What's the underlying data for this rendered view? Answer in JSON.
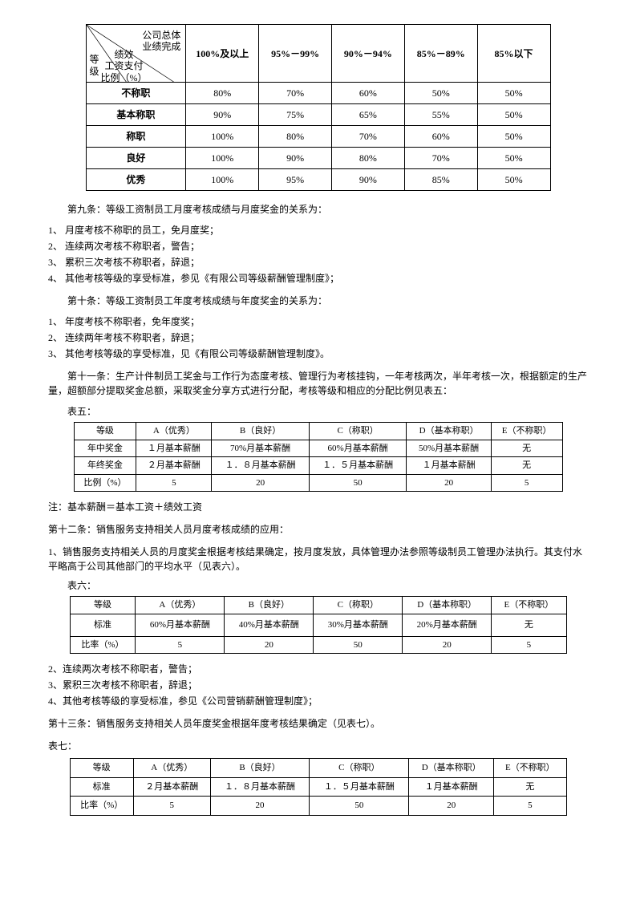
{
  "table1": {
    "diag_top": "公司总体\n业绩完成",
    "diag_mid": "绩效\n工资支付\n比例（%）",
    "diag_bot": "等\n级",
    "cols": [
      "100%及以上",
      "95%－99%",
      "90%－94%",
      "85%－89%",
      "85%以下"
    ],
    "rows": [
      {
        "label": "不称职",
        "vals": [
          "80%",
          "70%",
          "60%",
          "50%",
          "50%"
        ]
      },
      {
        "label": "基本称职",
        "vals": [
          "90%",
          "75%",
          "65%",
          "55%",
          "50%"
        ]
      },
      {
        "label": "称职",
        "vals": [
          "100%",
          "80%",
          "70%",
          "60%",
          "50%"
        ]
      },
      {
        "label": "良好",
        "vals": [
          "100%",
          "90%",
          "80%",
          "70%",
          "50%"
        ]
      },
      {
        "label": "优秀",
        "vals": [
          "100%",
          "95%",
          "90%",
          "85%",
          "50%"
        ]
      }
    ]
  },
  "art9_title": "第九条：等级工资制员工月度考核成绩与月度奖金的关系为：",
  "art9_list": [
    "1、 月度考核不称职的员工，免月度奖；",
    "2、 连续两次考核不称职者，警告；",
    "3、 累积三次考核不称职者，辞退；",
    "4、 其他考核等级的享受标准，参见《有限公司等级薪酬管理制度》；"
  ],
  "art10_title": "第十条：等级工资制员工年度考核成绩与年度奖金的关系为：",
  "art10_list": [
    "1、 年度考核不称职者，免年度奖；",
    "2、 连续两年考核不称职者，辞退；",
    "3、 其他考核等级的享受标准，见《有限公司等级薪酬管理制度》。"
  ],
  "art11": "第十一条：生产计件制员工奖金与工作行为态度考核、管理行为考核挂钩，一年考核两次，半年考核一次，根据额定的生产量，超额部分提取奖金总额，采取奖金分享方式进行分配，考核等级和相应的分配比例见表五：",
  "t5_label": "表五：",
  "table5": {
    "header": [
      "等级",
      "A（优秀）",
      "B（良好）",
      "C（称职）",
      "D（基本称职）",
      "E（不称职）"
    ],
    "r1": [
      "年中奖金",
      "１月基本薪酬",
      "70%月基本薪酬",
      "60%月基本薪酬",
      "50%月基本薪酬",
      "无"
    ],
    "r2": [
      "年终奖金",
      "２月基本薪酬",
      "１．８月基本薪酬",
      "１．５月基本薪酬",
      "１月基本薪酬",
      "无"
    ],
    "r3": [
      "比例（%）",
      "5",
      "20",
      "50",
      "20",
      "5"
    ]
  },
  "note1": "注：基本薪酬＝基本工资＋绩效工资",
  "art12_title": "第十二条：销售服务支持相关人员月度考核成绩的应用：",
  "art12_p1": "1、销售服务支持相关人员的月度奖金根据考核结果确定，按月度发放，具体管理办法参照等级制员工管理办法执行。其支付水平略高于公司其他部门的平均水平（见表六）。",
  "t6_label": "表六：",
  "table6": {
    "header": [
      "等级",
      "A（优秀）",
      "B（良好）",
      "C（称职）",
      "D（基本称职）",
      "E（不称职）"
    ],
    "r1": [
      "标准",
      "60%月基本薪酬",
      "40%月基本薪酬",
      "30%月基本薪酬",
      "20%月基本薪酬",
      "无"
    ],
    "r2": [
      "比率（%）",
      "5",
      "20",
      "50",
      "20",
      "5"
    ]
  },
  "art12_list": [
    "2、连续两次考核不称职者，警告；",
    "3、累积三次考核不称职者，辞退；",
    "4、其他考核等级的享受标准，参见《公司营销薪酬管理制度》；"
  ],
  "art13": "第十三条：销售服务支持相关人员年度奖金根据年度考核结果确定（见表七）。",
  "t7_label": "表七：",
  "table7": {
    "header": [
      "等级",
      "A（优秀）",
      "B（良好）",
      "C（称职）",
      "D（基本称职）",
      "E（不称职）"
    ],
    "r1": [
      "标准",
      "２月基本薪酬",
      "１．８月基本薪酬",
      "１．５月基本薪酬",
      "１月基本薪酬",
      "无"
    ],
    "r2": [
      "比率（%）",
      "5",
      "20",
      "50",
      "20",
      "5"
    ]
  }
}
